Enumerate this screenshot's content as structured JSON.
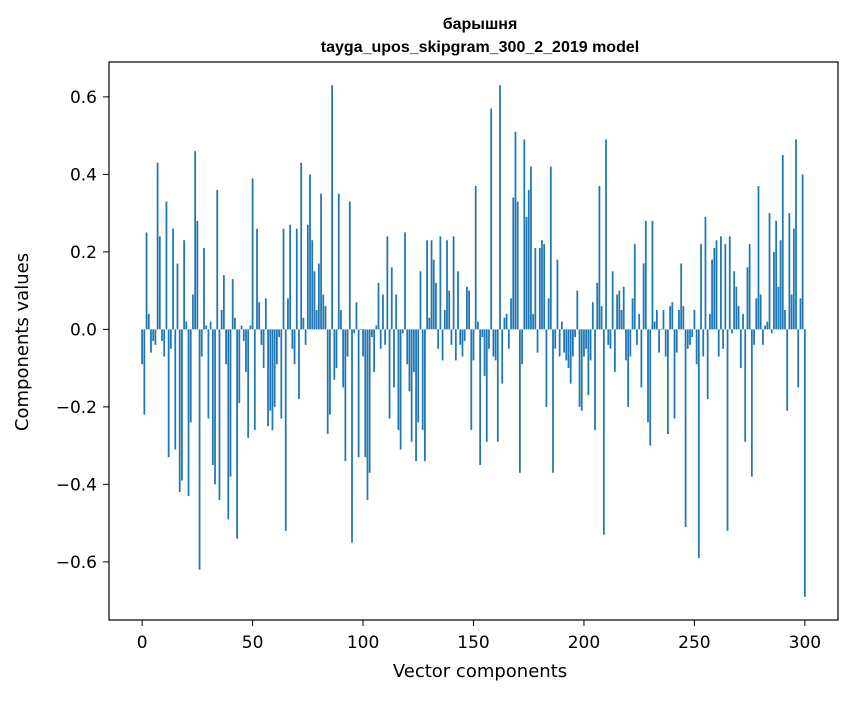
{
  "chart_data": {
    "type": "bar",
    "title": "барышня",
    "subtitle": "tayga_upos_skipgram_300_2_2019 model",
    "xlabel": "Vector components",
    "ylabel": "Components values",
    "xlim": [
      -15,
      315
    ],
    "ylim": [
      -0.75,
      0.69
    ],
    "xticks": [
      0,
      50,
      100,
      150,
      200,
      250,
      300
    ],
    "yticks": [
      -0.6,
      -0.4,
      -0.2,
      0.0,
      0.2,
      0.4,
      0.6
    ],
    "xtick_labels": [
      "0",
      "50",
      "100",
      "150",
      "200",
      "250",
      "300"
    ],
    "ytick_labels": [
      "−0.6",
      "−0.4",
      "−0.2",
      "0.0",
      "0.2",
      "0.4",
      "0.6"
    ],
    "grid": false,
    "bar_color": "#1f77b4",
    "values": [
      -0.09,
      -0.22,
      0.25,
      0.04,
      -0.06,
      -0.03,
      -0.04,
      0.43,
      0.24,
      -0.03,
      -0.07,
      0.33,
      -0.33,
      -0.05,
      0.26,
      -0.31,
      0.17,
      -0.42,
      -0.39,
      0.23,
      0.02,
      -0.43,
      -0.24,
      0.09,
      0.46,
      0.28,
      -0.62,
      -0.07,
      0.21,
      0.01,
      -0.23,
      0.02,
      -0.35,
      -0.4,
      0.36,
      -0.44,
      0.05,
      0.14,
      -0.09,
      -0.49,
      -0.38,
      0.13,
      0.03,
      -0.54,
      -0.19,
      0.01,
      -0.03,
      -0.11,
      -0.28,
      0.01,
      0.39,
      -0.26,
      0.26,
      0.07,
      -0.04,
      -0.1,
      0.08,
      -0.25,
      -0.21,
      -0.26,
      -0.2,
      -0.09,
      -0.02,
      -0.23,
      0.26,
      -0.52,
      0.08,
      0.27,
      -0.05,
      -0.09,
      0.26,
      -0.18,
      0.43,
      0.03,
      -0.04,
      0.27,
      0.4,
      0.23,
      0.15,
      0.05,
      0.17,
      0.35,
      0.09,
      0.06,
      -0.27,
      -0.22,
      0.63,
      -0.13,
      -0.1,
      0.35,
      0.05,
      -0.15,
      -0.34,
      -0.07,
      0.33,
      -0.55,
      -0.01,
      0.07,
      -0.33,
      0.0,
      -0.07,
      -0.33,
      -0.44,
      -0.37,
      -0.02,
      -0.11,
      0.01,
      0.12,
      -0.05,
      0.09,
      -0.04,
      0.24,
      -0.23,
      0.16,
      -0.15,
      0.09,
      -0.26,
      -0.31,
      -0.01,
      0.25,
      -0.09,
      -0.16,
      -0.29,
      -0.11,
      -0.34,
      -0.24,
      0.15,
      -0.26,
      -0.34,
      0.23,
      0.03,
      0.23,
      0.18,
      0.12,
      -0.05,
      0.24,
      -0.08,
      0.05,
      0.23,
      0.1,
      -0.04,
      0.24,
      -0.08,
      0.15,
      -0.04,
      -0.07,
      -0.03,
      0.11,
      0.1,
      -0.26,
      -0.08,
      0.37,
      0.02,
      -0.35,
      -0.02,
      -0.12,
      -0.29,
      -0.05,
      0.57,
      -0.07,
      -0.08,
      -0.29,
      0.63,
      -0.14,
      0.03,
      0.04,
      -0.05,
      0.08,
      0.34,
      0.51,
      0.33,
      -0.37,
      -0.09,
      0.49,
      0.29,
      0.36,
      0.42,
      0.04,
      0.21,
      -0.06,
      0.21,
      0.23,
      0.22,
      -0.2,
      0.08,
      0.42,
      -0.37,
      -0.05,
      0.18,
      -0.07,
      0.02,
      -0.06,
      -0.08,
      -0.1,
      -0.14,
      -0.07,
      -0.02,
      0.1,
      -0.2,
      -0.21,
      -0.07,
      -0.05,
      -0.17,
      -0.08,
      0.07,
      -0.26,
      0.12,
      0.37,
      0.06,
      -0.53,
      0.49,
      -0.04,
      -0.05,
      0.15,
      -0.11,
      0.09,
      0.1,
      0.05,
      0.11,
      -0.08,
      -0.2,
      -0.07,
      0.08,
      0.22,
      -0.04,
      0.04,
      -0.15,
      0.17,
      0.28,
      -0.24,
      -0.3,
      0.28,
      0.02,
      0.05,
      -0.06,
      0.0,
      0.05,
      -0.07,
      -0.27,
      0.06,
      0.07,
      -0.23,
      -0.06,
      0.05,
      0.17,
      0.06,
      -0.51,
      -0.05,
      -0.04,
      -0.02,
      0.05,
      -0.09,
      -0.59,
      0.22,
      -0.07,
      0.29,
      -0.18,
      0.04,
      0.18,
      0.21,
      0.23,
      -0.07,
      0.24,
      -0.05,
      0.22,
      -0.52,
      0.24,
      -0.01,
      0.15,
      0.11,
      0.06,
      -0.1,
      0.04,
      -0.29,
      0.16,
      0.22,
      -0.38,
      -0.04,
      0.08,
      0.37,
      0.09,
      -0.04,
      0.01,
      0.02,
      0.3,
      -0.01,
      0.2,
      0.28,
      0.11,
      0.23,
      0.45,
      0.05,
      -0.21,
      0.3,
      0.09,
      0.26,
      0.49,
      -0.15,
      0.08,
      0.4,
      -0.69
    ]
  }
}
